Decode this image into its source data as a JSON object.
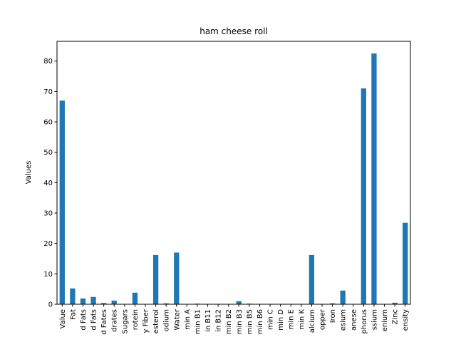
{
  "chart_data": {
    "type": "bar",
    "title": "ham cheese roll",
    "xlabel": "",
    "ylabel": "Values",
    "ylim": [
      0,
      86.5
    ],
    "yticks": [
      0,
      10,
      20,
      30,
      40,
      50,
      60,
      70,
      80
    ],
    "grid": false,
    "legend": "none",
    "bar_color": "#1f77b4",
    "categories": [
      "Value",
      "Fat",
      "d Fats",
      "d Fats",
      "d Fates",
      "drates",
      "Sugars",
      "rotein",
      "y Fiber",
      "esterol",
      "odium",
      "Water",
      "min A",
      "min B1",
      "in B11",
      "in B12",
      "min B2",
      "min B3",
      "min B5",
      "min B6",
      "min C",
      "min D",
      "min E",
      "min K",
      "alcium",
      "opper",
      "Iron",
      "esium",
      "anese",
      "phorus",
      "ssium",
      "enium",
      "Zinc",
      "ensity"
    ],
    "values": [
      67.0,
      5.2,
      1.9,
      2.4,
      0.4,
      1.2,
      0.1,
      3.8,
      0.1,
      16.2,
      0.3,
      17.0,
      0.05,
      0.2,
      0.05,
      0.05,
      0.1,
      1.0,
      0.2,
      0.1,
      0.05,
      0.05,
      0.05,
      0.05,
      16.2,
      0.1,
      0.3,
      4.5,
      0.1,
      71.0,
      82.5,
      0.1,
      0.5,
      26.8
    ]
  }
}
